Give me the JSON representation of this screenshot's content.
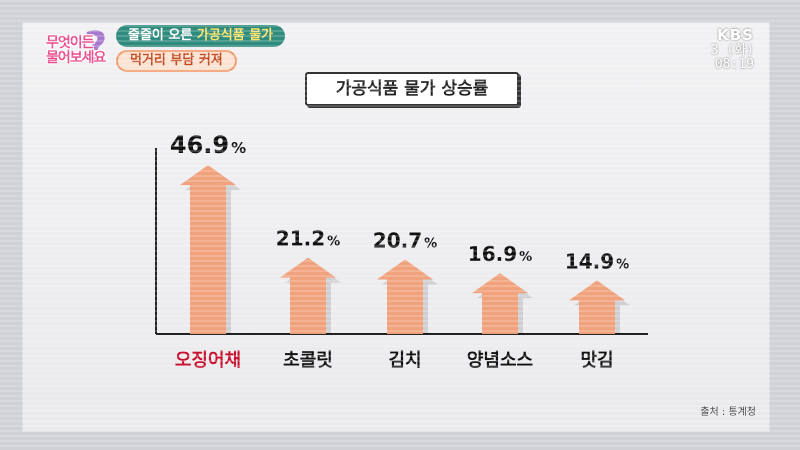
{
  "broadcast": {
    "program_logo_lines": [
      "무엇이든",
      "물어보세요"
    ],
    "headline_1_prefix": "줄줄이 오른 ",
    "headline_1_highlight": "가공식품 물가",
    "headline_2": "먹거리 부담 커져",
    "channel": "KBS",
    "date": "3 (화)",
    "time": "08:19"
  },
  "colors": {
    "bar": "#f0a27c",
    "highlight_label": "#c8102e",
    "label": "#111111"
  },
  "source_text": "출처 : 통계청",
  "chart_data": {
    "type": "bar",
    "title": "가공식품 물가 상승률",
    "categories": [
      "오징어채",
      "초콜릿",
      "김치",
      "양념소스",
      "맛김"
    ],
    "values": [
      46.9,
      21.2,
      20.7,
      16.9,
      14.9
    ],
    "value_labels": [
      "46.9",
      "21.2",
      "20.7",
      "16.9",
      "14.9"
    ],
    "value_suffix": "%",
    "highlight_index": 0,
    "xlabel": "",
    "ylabel": "",
    "ylim": [
      0,
      50
    ],
    "grid": false,
    "legend": "none"
  }
}
